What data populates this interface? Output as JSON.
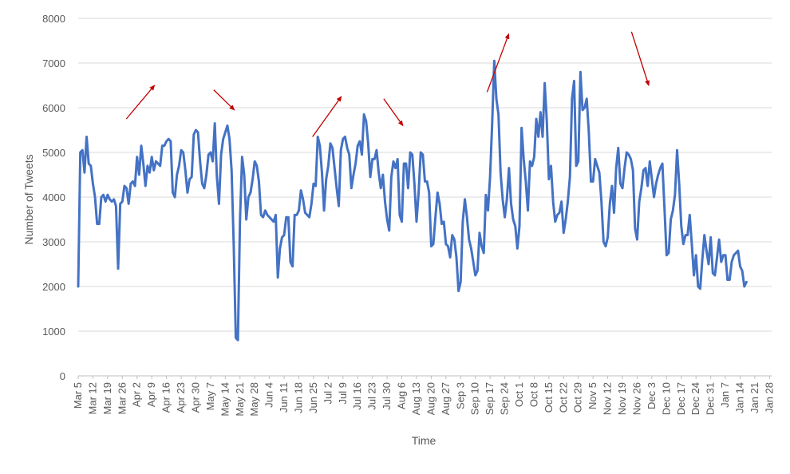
{
  "chart_data": {
    "type": "line",
    "title": "",
    "xlabel": "Time",
    "ylabel": "Number of Tweets",
    "ylim": [
      0,
      8000
    ],
    "y_ticks": [
      "0",
      "1000",
      "2000",
      "3000",
      "4000",
      "5000",
      "6000",
      "7000",
      "8000"
    ],
    "y_tick_values": [
      0,
      1000,
      2000,
      3000,
      4000,
      5000,
      6000,
      7000,
      8000
    ],
    "grid": true,
    "legend": "none",
    "x_range_days": [
      0,
      330
    ],
    "x_ticks": [
      "Mar 5",
      "Mar 12",
      "Mar 19",
      "Mar 26",
      "Apr 2",
      "Apr 9",
      "Apr 16",
      "Apr 23",
      "Apr 30",
      "May 7",
      "May 14",
      "May 21",
      "May 28",
      "Jun 4",
      "Jun 11",
      "Jun 18",
      "Jun 25",
      "Jul 2",
      "Jul 9",
      "Jul 16",
      "Jul 23",
      "Jul 30",
      "Aug 6",
      "Aug 13",
      "Aug 20",
      "Aug 27",
      "Sep 3",
      "Sep 10",
      "Sep 17",
      "Sep 24",
      "Oct 1",
      "Oct 8",
      "Oct 15",
      "Oct 22",
      "Oct 29",
      "Nov 5",
      "Nov 12",
      "Nov 19",
      "Nov 26",
      "Dec 3",
      "Dec 10",
      "Dec 17",
      "Dec 24",
      "Dec 31",
      "Jan 7",
      "Jan 14",
      "Jan 21",
      "Jan 28"
    ],
    "series": [
      {
        "name": "",
        "color": "#4472C4",
        "y": [
          2000,
          5000,
          5050,
          4550,
          5350,
          4750,
          4700,
          4300,
          4000,
          3400,
          3400,
          4000,
          4050,
          3900,
          4050,
          3950,
          3900,
          3950,
          3800,
          2400,
          3850,
          3900,
          4250,
          4200,
          3850,
          4300,
          4350,
          4250,
          4900,
          4500,
          5150,
          4750,
          4250,
          4700,
          4550,
          4900,
          4600,
          4800,
          4750,
          4700,
          5150,
          5150,
          5250,
          5300,
          5250,
          4100,
          4000,
          4500,
          4700,
          5050,
          5000,
          4600,
          4100,
          4400,
          4450,
          5400,
          5500,
          5450,
          4800,
          4300,
          4200,
          4500,
          4950,
          5000,
          4800,
          5650,
          4450,
          3850,
          4950,
          5300,
          5450,
          5600,
          5300,
          4600,
          2950,
          850,
          800,
          3500,
          4900,
          4500,
          3500,
          4000,
          4100,
          4400,
          4800,
          4700,
          4350,
          3600,
          3550,
          3700,
          3600,
          3550,
          3500,
          3450,
          3600,
          2200,
          2850,
          3100,
          3150,
          3550,
          3550,
          2550,
          2450,
          3600,
          3600,
          3700,
          4150,
          3950,
          3650,
          3600,
          3550,
          3850,
          4300,
          4250,
          5350,
          5150,
          4550,
          3700,
          4400,
          4700,
          5200,
          5100,
          4650,
          4200,
          3800,
          5050,
          5300,
          5350,
          5100,
          4950,
          4200,
          4500,
          4750,
          5150,
          5250,
          4950,
          5850,
          5700,
          5200,
          4450,
          4850,
          4850,
          5050,
          4550,
          4200,
          4500,
          3900,
          3500,
          3250,
          4450,
          4800,
          4650,
          4850,
          3600,
          3450,
          4750,
          4750,
          4200,
          5000,
          4950,
          4300,
          3450,
          4100,
          5000,
          4950,
          4350,
          4350,
          4100,
          2900,
          2950,
          3550,
          4100,
          3850,
          3400,
          3450,
          2950,
          2900,
          2650,
          3150,
          3050,
          2650,
          1900,
          2100,
          3450,
          3950,
          3550,
          3050,
          2850,
          2550,
          2250,
          2350,
          3200,
          2900,
          2750,
          4050,
          3700,
          4450,
          5650,
          7050,
          6200,
          5850,
          4550,
          3950,
          3550,
          3950,
          4650,
          3850,
          3500,
          3350,
          2850,
          3350,
          5550,
          4850,
          4350,
          3700,
          4800,
          4700,
          4900,
          5750,
          5350,
          5900,
          5350,
          6550,
          5700,
          4400,
          4700,
          3900,
          3450,
          3600,
          3650,
          3900,
          3200,
          3500,
          3900,
          4450,
          6200,
          6600,
          4700,
          4800,
          6800,
          5950,
          6000,
          6200,
          5450,
          4350,
          4350,
          4850,
          4700,
          4550,
          3900,
          3000,
          2900,
          3100,
          3850,
          4250,
          3650,
          4650,
          5100,
          4300,
          4200,
          4650,
          5000,
          4950,
          4850,
          4600,
          3300,
          3050,
          3900,
          4200,
          4600,
          4650,
          4250,
          4800,
          4400,
          4000,
          4300,
          4500,
          4650,
          4750,
          3750,
          2700,
          2750,
          3500,
          3700,
          4050,
          5050,
          4300,
          3350,
          2950,
          3150,
          3150,
          3600,
          2950,
          2250,
          2700,
          2000,
          1950,
          2600,
          3150,
          2800,
          2500,
          3100,
          2300,
          2250,
          2650,
          3050,
          2550,
          2700,
          2700,
          2150,
          2150,
          2550,
          2700,
          2750,
          2800,
          2450,
          2350,
          2000,
          2100
        ]
      }
    ],
    "annotations": {
      "arrow_color": "#C00000",
      "arrows": [
        {
          "x0": 22.9,
          "y0": 5750,
          "x1": 36.3,
          "y1": 6500,
          "direction": "up"
        },
        {
          "x0": 64.5,
          "y0": 6400,
          "x1": 74.3,
          "y1": 5950,
          "direction": "down"
        },
        {
          "x0": 111.5,
          "y0": 5350,
          "x1": 125.2,
          "y1": 6250,
          "direction": "up"
        },
        {
          "x0": 145.4,
          "y0": 6200,
          "x1": 154.5,
          "y1": 5600,
          "direction": "down"
        },
        {
          "x0": 194.6,
          "y0": 6350,
          "x1": 204.9,
          "y1": 7650,
          "direction": "up"
        },
        {
          "x0": 263.3,
          "y0": 7700,
          "x1": 271.5,
          "y1": 6500,
          "direction": "down"
        }
      ]
    }
  }
}
